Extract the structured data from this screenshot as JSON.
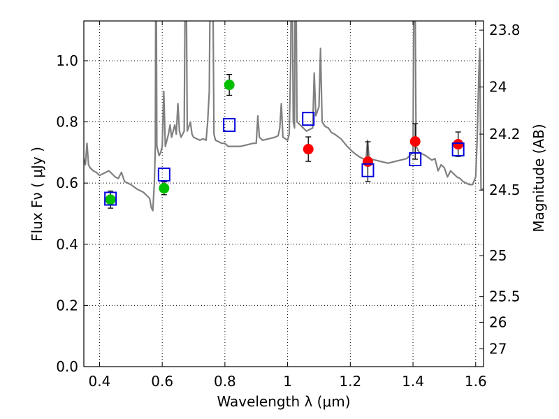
{
  "chart_data": {
    "type": "line",
    "title": "",
    "xlabel": "Wavelength  λ (μm)",
    "ylabel": "Flux  Fν  ( μJy )",
    "ylabel_right": "Magnitude (AB)",
    "xlim": [
      0.35,
      1.625
    ],
    "ylim": [
      0.0,
      1.13
    ],
    "grid": true,
    "x_ticks": [
      0.4,
      0.6,
      0.8,
      1.0,
      1.2,
      1.4,
      1.6
    ],
    "x_tick_labels": [
      "0.4",
      "0.6",
      "0.8",
      "1",
      "1.2",
      "1.4",
      "1.6"
    ],
    "y_ticks": [
      0.0,
      0.2,
      0.4,
      0.6,
      0.8,
      1.0
    ],
    "y_tick_labels": [
      "0.0",
      "0.2",
      "0.4",
      "0.6",
      "0.8",
      "1.0"
    ],
    "right_ticks": [
      {
        "label": "23.8",
        "flux": 1.1
      },
      {
        "label": "24",
        "flux": 0.914
      },
      {
        "label": "24.2",
        "flux": 0.76
      },
      {
        "label": "24.5",
        "flux": 0.577
      },
      {
        "label": "25",
        "flux": 0.363
      },
      {
        "label": "25.5",
        "flux": 0.229
      },
      {
        "label": "26",
        "flux": 0.145
      },
      {
        "label": "27",
        "flux": 0.058
      }
    ],
    "series": [
      {
        "kind": "line",
        "color": "#808080",
        "points": [
          [
            0.35,
            0.68
          ],
          [
            0.355,
            0.66
          ],
          [
            0.36,
            0.73
          ],
          [
            0.365,
            0.66
          ],
          [
            0.37,
            0.65
          ],
          [
            0.38,
            0.64
          ],
          [
            0.39,
            0.635
          ],
          [
            0.4,
            0.625
          ],
          [
            0.41,
            0.63
          ],
          [
            0.42,
            0.635
          ],
          [
            0.43,
            0.64
          ],
          [
            0.44,
            0.63
          ],
          [
            0.45,
            0.62
          ],
          [
            0.46,
            0.615
          ],
          [
            0.47,
            0.635
          ],
          [
            0.48,
            0.605
          ],
          [
            0.49,
            0.6
          ],
          [
            0.5,
            0.595
          ],
          [
            0.52,
            0.58
          ],
          [
            0.54,
            0.57
          ],
          [
            0.56,
            0.55
          ],
          [
            0.565,
            0.52
          ],
          [
            0.57,
            0.51
          ],
          [
            0.575,
            0.6
          ],
          [
            0.578,
            0.72
          ],
          [
            0.58,
            1.5
          ],
          [
            0.583,
            0.72
          ],
          [
            0.59,
            0.69
          ],
          [
            0.595,
            0.7
          ],
          [
            0.6,
            0.72
          ],
          [
            0.605,
            0.9
          ],
          [
            0.61,
            0.72
          ],
          [
            0.62,
            0.76
          ],
          [
            0.625,
            0.79
          ],
          [
            0.63,
            0.75
          ],
          [
            0.64,
            0.79
          ],
          [
            0.645,
            0.76
          ],
          [
            0.65,
            0.86
          ],
          [
            0.655,
            0.77
          ],
          [
            0.66,
            0.75
          ],
          [
            0.67,
            0.77
          ],
          [
            0.675,
            1.5
          ],
          [
            0.68,
            0.77
          ],
          [
            0.69,
            0.8
          ],
          [
            0.695,
            0.76
          ],
          [
            0.7,
            0.75
          ],
          [
            0.71,
            0.745
          ],
          [
            0.72,
            0.74
          ],
          [
            0.73,
            0.745
          ],
          [
            0.74,
            0.74
          ],
          [
            0.745,
            0.8
          ],
          [
            0.75,
            0.9
          ],
          [
            0.755,
            1.5
          ],
          [
            0.76,
            1.5
          ],
          [
            0.765,
            0.76
          ],
          [
            0.77,
            0.74
          ],
          [
            0.78,
            0.735
          ],
          [
            0.79,
            0.73
          ],
          [
            0.8,
            0.73
          ],
          [
            0.81,
            0.72
          ],
          [
            0.82,
            0.72
          ],
          [
            0.83,
            0.72
          ],
          [
            0.85,
            0.72
          ],
          [
            0.87,
            0.725
          ],
          [
            0.89,
            0.73
          ],
          [
            0.9,
            0.73
          ],
          [
            0.905,
            0.82
          ],
          [
            0.91,
            0.75
          ],
          [
            0.92,
            0.74
          ],
          [
            0.94,
            0.745
          ],
          [
            0.96,
            0.75
          ],
          [
            0.97,
            0.755
          ],
          [
            0.975,
            0.78
          ],
          [
            0.98,
            0.86
          ],
          [
            0.985,
            0.75
          ],
          [
            1.0,
            0.74
          ],
          [
            1.005,
            0.76
          ],
          [
            1.01,
            1.0
          ],
          [
            1.013,
            1.5
          ],
          [
            1.018,
            0.8
          ],
          [
            1.022,
            0.78
          ],
          [
            1.025,
            1.5
          ],
          [
            1.03,
            0.8
          ],
          [
            1.04,
            0.79
          ],
          [
            1.05,
            0.78
          ],
          [
            1.06,
            0.77
          ],
          [
            1.08,
            0.78
          ],
          [
            1.085,
            0.96
          ],
          [
            1.09,
            0.82
          ],
          [
            1.1,
            0.85
          ],
          [
            1.105,
            1.04
          ],
          [
            1.11,
            0.8
          ],
          [
            1.12,
            0.785
          ],
          [
            1.13,
            0.78
          ],
          [
            1.14,
            0.765
          ],
          [
            1.15,
            0.76
          ],
          [
            1.17,
            0.745
          ],
          [
            1.19,
            0.72
          ],
          [
            1.21,
            0.7
          ],
          [
            1.23,
            0.685
          ],
          [
            1.25,
            0.675
          ],
          [
            1.255,
            0.74
          ],
          [
            1.26,
            0.68
          ],
          [
            1.28,
            0.675
          ],
          [
            1.3,
            0.67
          ],
          [
            1.32,
            0.665
          ],
          [
            1.34,
            0.67
          ],
          [
            1.36,
            0.675
          ],
          [
            1.38,
            0.68
          ],
          [
            1.39,
            0.69
          ],
          [
            1.4,
            0.7
          ],
          [
            1.403,
            1.3
          ],
          [
            1.406,
            1.3
          ],
          [
            1.41,
            0.72
          ],
          [
            1.42,
            0.7
          ],
          [
            1.44,
            0.69
          ],
          [
            1.46,
            0.675
          ],
          [
            1.47,
            0.68
          ],
          [
            1.48,
            0.64
          ],
          [
            1.49,
            0.66
          ],
          [
            1.5,
            0.65
          ],
          [
            1.51,
            0.62
          ],
          [
            1.52,
            0.64
          ],
          [
            1.53,
            0.63
          ],
          [
            1.54,
            0.62
          ],
          [
            1.55,
            0.615
          ],
          [
            1.56,
            0.605
          ],
          [
            1.57,
            0.6
          ],
          [
            1.58,
            0.595
          ],
          [
            1.59,
            0.595
          ],
          [
            1.6,
            0.62
          ],
          [
            1.605,
            0.75
          ],
          [
            1.61,
            0.96
          ],
          [
            1.613,
            1.04
          ],
          [
            1.617,
            0.58
          ],
          [
            1.625,
            0.58
          ]
        ]
      },
      {
        "kind": "points",
        "marker": "circle",
        "color": "#00bf00",
        "points": [
          {
            "x": 0.435,
            "y": 0.546,
            "err": 0.028
          },
          {
            "x": 0.606,
            "y": 0.583,
            "err": 0.021
          },
          {
            "x": 0.814,
            "y": 0.921,
            "err": 0.034
          }
        ]
      },
      {
        "kind": "points",
        "marker": "circle",
        "color": "#ff0000",
        "points": [
          {
            "x": 1.066,
            "y": 0.711,
            "err": 0.04
          },
          {
            "x": 1.256,
            "y": 0.67,
            "err": 0.065
          },
          {
            "x": 1.407,
            "y": 0.736,
            "err": 0.058
          },
          {
            "x": 1.544,
            "y": 0.727,
            "err": 0.04
          }
        ]
      },
      {
        "kind": "points",
        "marker": "open-square",
        "color": "#0000dd",
        "points": [
          {
            "x": 0.435,
            "y": 0.549
          },
          {
            "x": 0.606,
            "y": 0.628
          },
          {
            "x": 0.814,
            "y": 0.79
          },
          {
            "x": 1.066,
            "y": 0.81
          },
          {
            "x": 1.256,
            "y": 0.642
          },
          {
            "x": 1.407,
            "y": 0.678
          },
          {
            "x": 1.544,
            "y": 0.71
          }
        ]
      }
    ]
  }
}
